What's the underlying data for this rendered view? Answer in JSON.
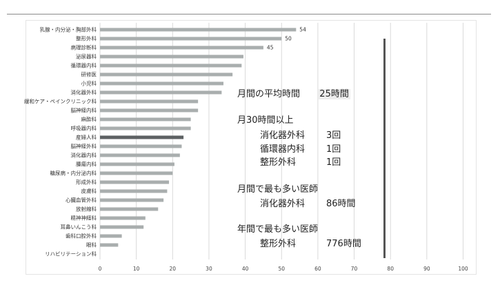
{
  "chart_data": {
    "type": "bar",
    "orientation": "horizontal",
    "categories": [
      "乳腺・内分泌・胸部外科",
      "整形外科",
      "病理診断科",
      "泌尿器科",
      "循環器内科",
      "研修医",
      "小児科",
      "消化器外科",
      "緩和ケア・ペインクリニック科",
      "脳神経内科",
      "麻酔科",
      "呼吸器内科",
      "産婦人科",
      "脳神経外科",
      "消化器内科",
      "腫瘍内科",
      "糖尿病・内分泌内科",
      "形成外科",
      "皮膚科",
      "心臓血管外科",
      "放射線科",
      "精神神経科",
      "耳鼻いんこう科",
      "歯科口腔外科",
      "眼科",
      "リハビリテーション科"
    ],
    "values": [
      54,
      50,
      45,
      39.5,
      39,
      36.5,
      34,
      33.5,
      27,
      27,
      25,
      25,
      23,
      22.5,
      22,
      20.5,
      20,
      19,
      18.5,
      17.5,
      16,
      12.5,
      12,
      6,
      5,
      0
    ],
    "data_labels": {
      "0": "54",
      "1": "50",
      "2": "45"
    },
    "highlight_index": 12,
    "xlim": [
      0,
      100
    ],
    "xticks": [
      "0",
      "10",
      "20",
      "30",
      "40",
      "50",
      "60",
      "70",
      "80",
      "90",
      "100"
    ],
    "grid": true,
    "colors": {
      "bar": "#a9aeae",
      "highlight": "#5d6163",
      "grid": "#d9d9d9"
    }
  },
  "stats": {
    "avg_label": "月間の平均時間",
    "avg_value": "25時間",
    "over30_title": "月30時間以上",
    "over30_rows": [
      {
        "dept": "消化器外科",
        "count": "3回"
      },
      {
        "dept": "循環器内科",
        "count": "1回"
      },
      {
        "dept": "整形外科",
        "count": "1回"
      }
    ],
    "monthly_max_title": "月間で最も多い医師",
    "monthly_max_dept": "消化器外科",
    "monthly_max_value": "86時間",
    "yearly_max_title": "年間で最も多い医師",
    "yearly_max_dept": "整形外科",
    "yearly_max_value": "776時間"
  }
}
